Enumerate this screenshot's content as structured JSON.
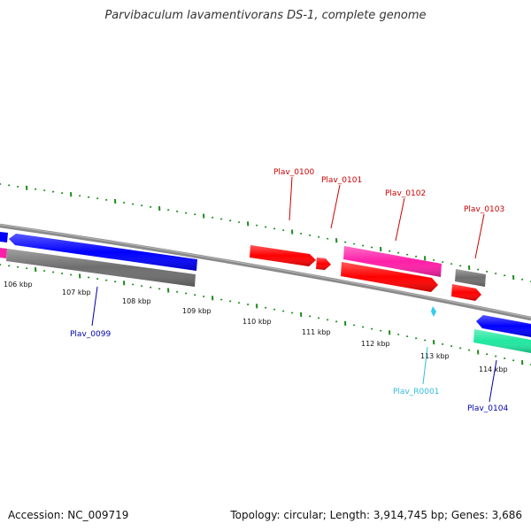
{
  "title": "Parvibaculum lavamentivorans DS-1, complete genome",
  "footer": {
    "accession": "Accession: NC_009719",
    "topology": "Topology: circular; Length: 3,914,745 bp; Genes: 3,686"
  },
  "colors": {
    "backbone": "#808080",
    "forward_cds": "#ff0000",
    "forward_alt": "#ff1fa8",
    "reverse_cds": "#0000ff",
    "gray_gene": "#6e6e6e",
    "rna_gene": "#20e8a0",
    "ticks": "#1a8c1a",
    "label_red": "#cc0000",
    "label_blue": "#0000aa",
    "label_cyan": "#33bbdd"
  },
  "kbp_labels": [
    "106 kbp",
    "107 kbp",
    "108 kbp",
    "109 kbp",
    "110 kbp",
    "111 kbp",
    "112 kbp",
    "113 kbp",
    "114 kbp"
  ],
  "gene_labels": [
    {
      "text": "Plav_0099",
      "color": "#0000aa"
    },
    {
      "text": "Plav_0100",
      "color": "#cc0000"
    },
    {
      "text": "Plav_0101",
      "color": "#cc0000"
    },
    {
      "text": "Plav_0102",
      "color": "#cc0000"
    },
    {
      "text": "Plav_0103",
      "color": "#cc0000"
    },
    {
      "text": "Plav_R0001",
      "color": "#33bbdd"
    },
    {
      "text": "Plav_0104",
      "color": "#0000aa"
    }
  ]
}
